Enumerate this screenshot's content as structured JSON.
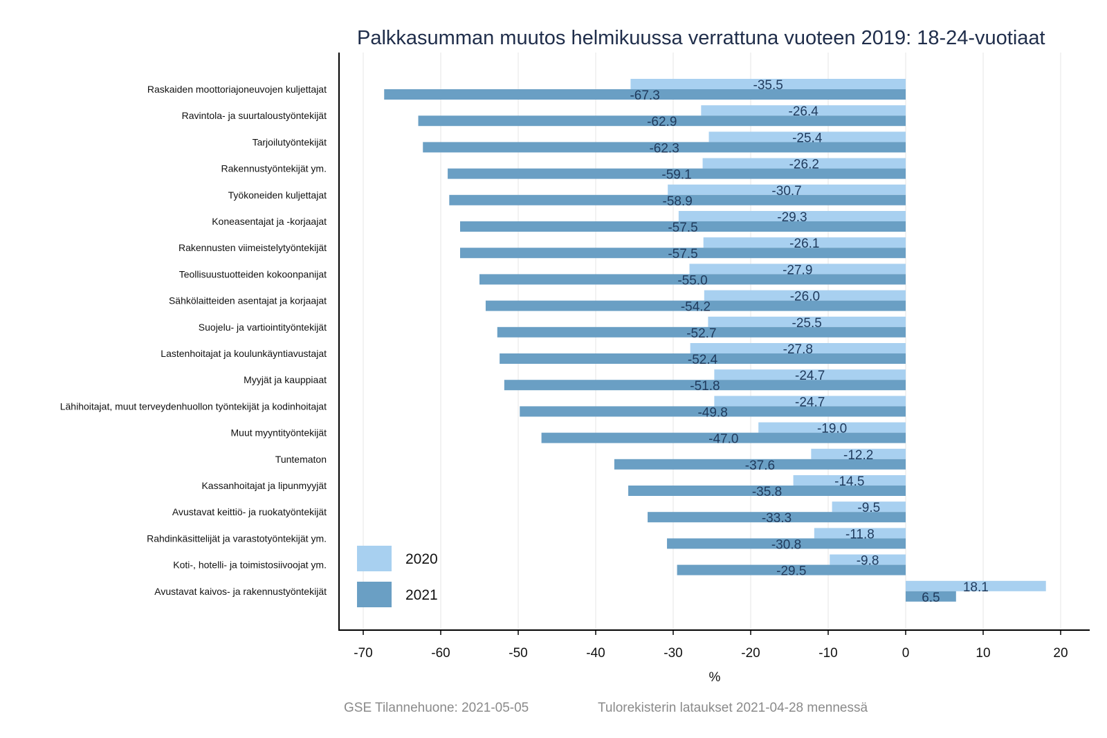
{
  "chart_data": {
    "type": "bar",
    "orientation": "horizontal",
    "title": "Palkkasumman muutos helmikuussa verrattuna vuoteen 2019: 18-24-vuotiaat",
    "xlabel": "%",
    "ylabel": "",
    "xlim": [
      -73,
      23
    ],
    "xticks": [
      -70,
      -60,
      -50,
      -40,
      -30,
      -20,
      -10,
      0,
      10,
      20
    ],
    "grid": "vertical",
    "legend_position": "bottom-left",
    "categories": [
      "Raskaiden moottoriajoneuvojen kuljettajat",
      "Ravintola- ja suurtaloustyöntekijät",
      "Tarjoilutyöntekijät",
      "Rakennustyöntekijät ym.",
      "Työkoneiden kuljettajat",
      "Koneasentajat ja -korjaajat",
      "Rakennusten viimeistelytyöntekijät",
      "Teollisuustuotteiden kokoonpanijat",
      "Sähkölaitteiden asentajat ja korjaajat",
      "Suojelu- ja vartiointityöntekijät",
      "Lastenhoitajat ja koulunkäyntiavustajat",
      "Myyjät ja kauppiaat",
      "Lähihoitajat, muut terveydenhuollon työntekijät ja kodinhoitajat",
      "Muut myyntityöntekijät",
      "Tuntematon",
      "Kassanhoitajat ja lipunmyyjät",
      "Avustavat keittiö- ja ruokatyöntekijät",
      "Rahdinkäsittelijät ja varastotyöntekijät ym.",
      "Koti-, hotelli- ja toimistosiivoojat ym.",
      "Avustavat kaivos- ja rakennustyöntekijät"
    ],
    "series": [
      {
        "name": "2020",
        "color": "#a8d0f0",
        "values": [
          -35.5,
          -26.4,
          -25.4,
          -26.2,
          -30.7,
          -29.3,
          -26.1,
          -27.9,
          -26.0,
          -25.5,
          -27.8,
          -24.7,
          -24.7,
          -19.0,
          -12.2,
          -14.5,
          -9.5,
          -11.8,
          -9.8,
          18.1
        ]
      },
      {
        "name": "2021",
        "color": "#6a9fc4",
        "values": [
          -67.3,
          -62.9,
          -62.3,
          -59.1,
          -58.9,
          -57.5,
          -57.5,
          -55.0,
          -54.2,
          -52.7,
          -52.4,
          -51.8,
          -49.8,
          -47.0,
          -37.6,
          -35.8,
          -33.3,
          -30.8,
          -29.5,
          6.5
        ]
      }
    ],
    "footer_left": "GSE Tilannehuone: 2021-05-05",
    "footer_right": "Tulorekisterin lataukset 2021-04-28 mennessä"
  }
}
